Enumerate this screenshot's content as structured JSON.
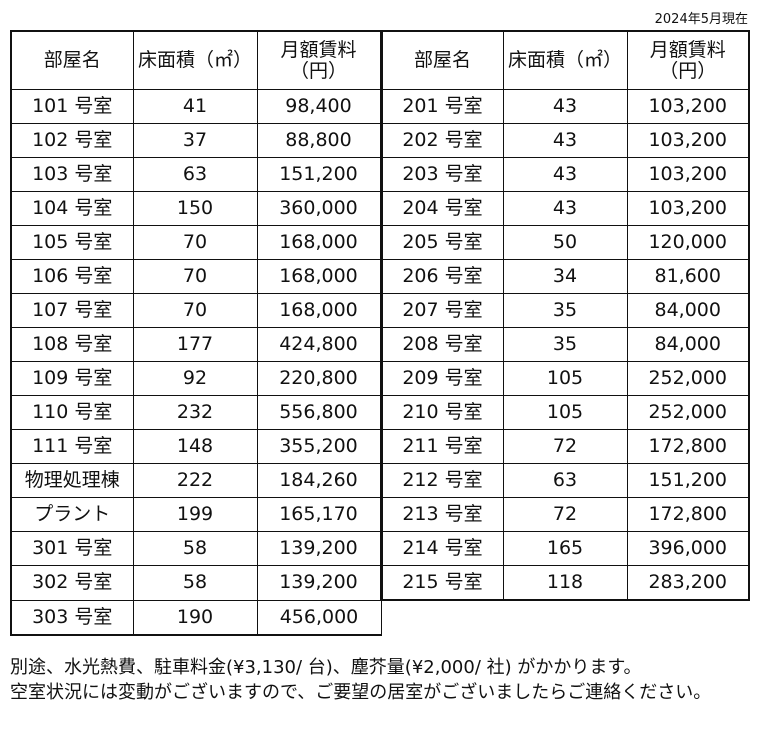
{
  "date_note": "2024年5月現在",
  "headers": {
    "room": "部屋名",
    "area": "床面積（㎡）",
    "rent_line1": "月額賃料",
    "rent_line2": "（円）"
  },
  "left_rows": [
    {
      "room": "101 号室",
      "area": "41",
      "rent": "98,400"
    },
    {
      "room": "102 号室",
      "area": "37",
      "rent": "88,800"
    },
    {
      "room": "103 号室",
      "area": "63",
      "rent": "151,200"
    },
    {
      "room": "104 号室",
      "area": "150",
      "rent": "360,000"
    },
    {
      "room": "105 号室",
      "area": "70",
      "rent": "168,000"
    },
    {
      "room": "106 号室",
      "area": "70",
      "rent": "168,000"
    },
    {
      "room": "107 号室",
      "area": "70",
      "rent": "168,000"
    },
    {
      "room": "108 号室",
      "area": "177",
      "rent": "424,800"
    },
    {
      "room": "109 号室",
      "area": "92",
      "rent": "220,800"
    },
    {
      "room": "110 号室",
      "area": "232",
      "rent": "556,800"
    },
    {
      "room": "111 号室",
      "area": "148",
      "rent": "355,200"
    },
    {
      "room": "物理処理棟",
      "area": "222",
      "rent": "184,260"
    },
    {
      "room": "プラント",
      "area": "199",
      "rent": "165,170"
    },
    {
      "room": "301 号室",
      "area": "58",
      "rent": "139,200"
    },
    {
      "room": "302 号室",
      "area": "58",
      "rent": "139,200"
    },
    {
      "room": "303 号室",
      "area": "190",
      "rent": "456,000"
    }
  ],
  "right_rows": [
    {
      "room": "201 号室",
      "area": "43",
      "rent": "103,200"
    },
    {
      "room": "202 号室",
      "area": "43",
      "rent": "103,200"
    },
    {
      "room": "203 号室",
      "area": "43",
      "rent": "103,200"
    },
    {
      "room": "204 号室",
      "area": "43",
      "rent": "103,200"
    },
    {
      "room": "205 号室",
      "area": "50",
      "rent": "120,000"
    },
    {
      "room": "206 号室",
      "area": "34",
      "rent": "81,600"
    },
    {
      "room": "207 号室",
      "area": "35",
      "rent": "84,000"
    },
    {
      "room": "208 号室",
      "area": "35",
      "rent": "84,000"
    },
    {
      "room": "209 号室",
      "area": "105",
      "rent": "252,000"
    },
    {
      "room": "210 号室",
      "area": "105",
      "rent": "252,000"
    },
    {
      "room": "211 号室",
      "area": "72",
      "rent": "172,800"
    },
    {
      "room": "212 号室",
      "area": "63",
      "rent": "151,200"
    },
    {
      "room": "213 号室",
      "area": "72",
      "rent": "172,800"
    },
    {
      "room": "214 号室",
      "area": "165",
      "rent": "396,000"
    },
    {
      "room": "215 号室",
      "area": "118",
      "rent": "283,200"
    }
  ],
  "notes": {
    "line1": "別途、水光熱費、駐車料金(¥3,130/ 台)、塵芥量(¥2,000/ 社) がかかります。",
    "line2": "空室状況には変動がございますので、ご要望の居室がございましたらご連絡ください。"
  }
}
